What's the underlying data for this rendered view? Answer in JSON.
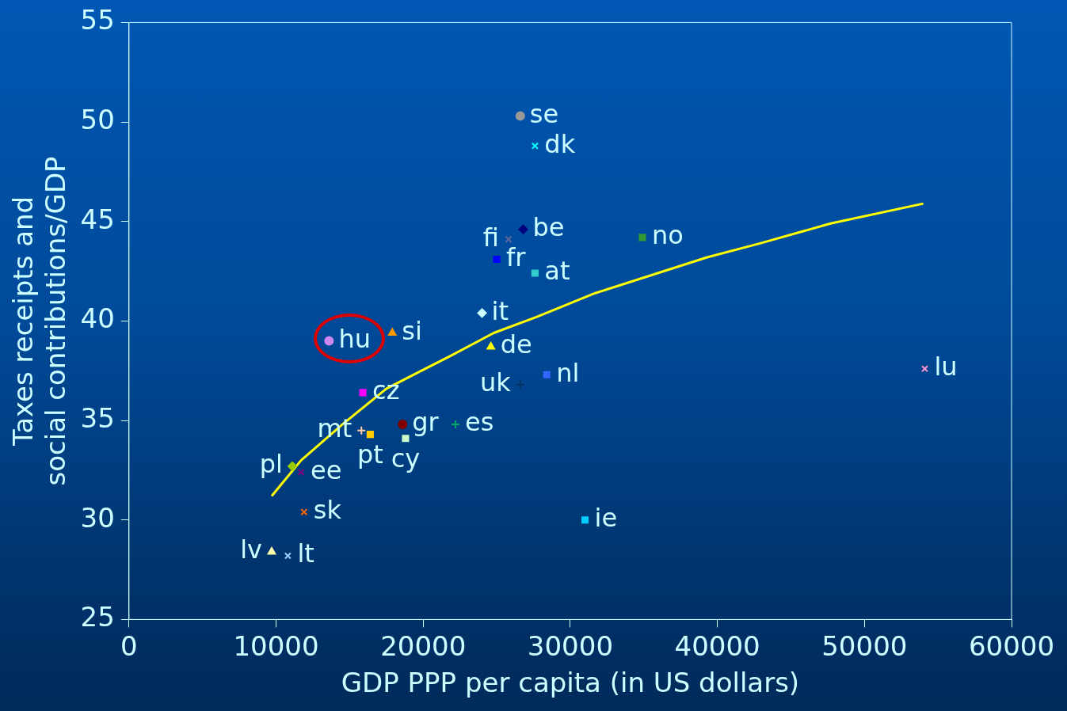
{
  "chart_data": {
    "type": "scatter",
    "xlabel": "GDP PPP per capita (in US dollars)",
    "ylabel": "Taxes receipts and social contributions/GDP",
    "xlim": [
      0,
      60000
    ],
    "xticks": [
      0,
      10000,
      20000,
      30000,
      40000,
      50000,
      60000
    ],
    "ylim": [
      25,
      55
    ],
    "yticks": [
      25,
      30,
      35,
      40,
      45,
      50,
      55
    ],
    "series": [
      {
        "name": "se",
        "color": "#999999",
        "marker": "circle",
        "x": [
          26600
        ],
        "values": [
          50.3
        ]
      },
      {
        "name": "dk",
        "color": "#00ffff",
        "marker": "cross",
        "x": [
          27600
        ],
        "values": [
          48.8
        ]
      },
      {
        "name": "fi",
        "color": "#666699",
        "marker": "cross",
        "x": [
          25800
        ],
        "values": [
          44.1
        ]
      },
      {
        "name": "be",
        "color": "#000080",
        "marker": "diamond",
        "x": [
          26800
        ],
        "values": [
          44.6
        ]
      },
      {
        "name": "no",
        "color": "#339933",
        "marker": "square",
        "x": [
          34900
        ],
        "values": [
          44.2
        ]
      },
      {
        "name": "fr",
        "color": "#0000ff",
        "marker": "square",
        "x": [
          25000
        ],
        "values": [
          43.1
        ]
      },
      {
        "name": "at",
        "color": "#33cccc",
        "marker": "square",
        "x": [
          27600
        ],
        "values": [
          42.4
        ]
      },
      {
        "name": "it",
        "color": "#ccffff",
        "marker": "diamond",
        "x": [
          24000
        ],
        "values": [
          40.4
        ]
      },
      {
        "name": "si",
        "color": "#ff9900",
        "marker": "triangle",
        "x": [
          17900
        ],
        "values": [
          39.4
        ]
      },
      {
        "name": "hu",
        "color": "#cc88ee",
        "marker": "circle",
        "x": [
          13600
        ],
        "values": [
          39.0
        ]
      },
      {
        "name": "de",
        "color": "#ffff00",
        "marker": "triangle",
        "x": [
          24600
        ],
        "values": [
          38.7
        ]
      },
      {
        "name": "nl",
        "color": "#3366ff",
        "marker": "square",
        "x": [
          28400
        ],
        "values": [
          37.3
        ]
      },
      {
        "name": "uk",
        "color": "#003366",
        "marker": "plus",
        "x": [
          26600
        ],
        "values": [
          36.8
        ]
      },
      {
        "name": "lu",
        "color": "#ff99cc",
        "marker": "cross",
        "x": [
          54100
        ],
        "values": [
          37.6
        ]
      },
      {
        "name": "cz",
        "color": "#ff00ff",
        "marker": "square",
        "x": [
          15900
        ],
        "values": [
          36.4
        ]
      },
      {
        "name": "gr",
        "color": "#800000",
        "marker": "circle",
        "x": [
          18600
        ],
        "values": [
          34.8
        ]
      },
      {
        "name": "es",
        "color": "#00aa66",
        "marker": "plus",
        "x": [
          22200
        ],
        "values": [
          34.8
        ]
      },
      {
        "name": "mt",
        "color": "#ffccaa",
        "marker": "plus",
        "x": [
          15800
        ],
        "values": [
          34.5
        ]
      },
      {
        "name": "pt",
        "color": "#ffcc00",
        "marker": "square",
        "x": [
          16400
        ],
        "values": [
          34.3
        ]
      },
      {
        "name": "cy",
        "color": "#ccffcc",
        "marker": "square",
        "x": [
          18800
        ],
        "values": [
          34.1
        ]
      },
      {
        "name": "pl",
        "color": "#99cc00",
        "marker": "diamond",
        "x": [
          11100
        ],
        "values": [
          32.7
        ]
      },
      {
        "name": "ee",
        "color": "#800080",
        "marker": "cross",
        "x": [
          11700
        ],
        "values": [
          32.4
        ]
      },
      {
        "name": "sk",
        "color": "#ff6600",
        "marker": "cross",
        "x": [
          11900
        ],
        "values": [
          30.4
        ]
      },
      {
        "name": "ie",
        "color": "#00ccff",
        "marker": "square",
        "x": [
          31000
        ],
        "values": [
          30.0
        ]
      },
      {
        "name": "lv",
        "color": "#ffffaa",
        "marker": "triangle",
        "x": [
          9700
        ],
        "values": [
          28.4
        ]
      },
      {
        "name": "lt",
        "color": "#99ccff",
        "marker": "cross",
        "x": [
          10800
        ],
        "values": [
          28.2
        ]
      },
      {
        "type": "line",
        "color": "#ffff00",
        "marker": "none",
        "x": [
          9700,
          11700,
          14500,
          17500,
          22000,
          24800,
          27700,
          31700,
          39300,
          42900,
          47700,
          54000
        ],
        "values": [
          31.2,
          33.0,
          34.8,
          36.6,
          38.3,
          39.4,
          40.2,
          41.4,
          43.2,
          43.9,
          44.9,
          45.9
        ]
      }
    ]
  }
}
